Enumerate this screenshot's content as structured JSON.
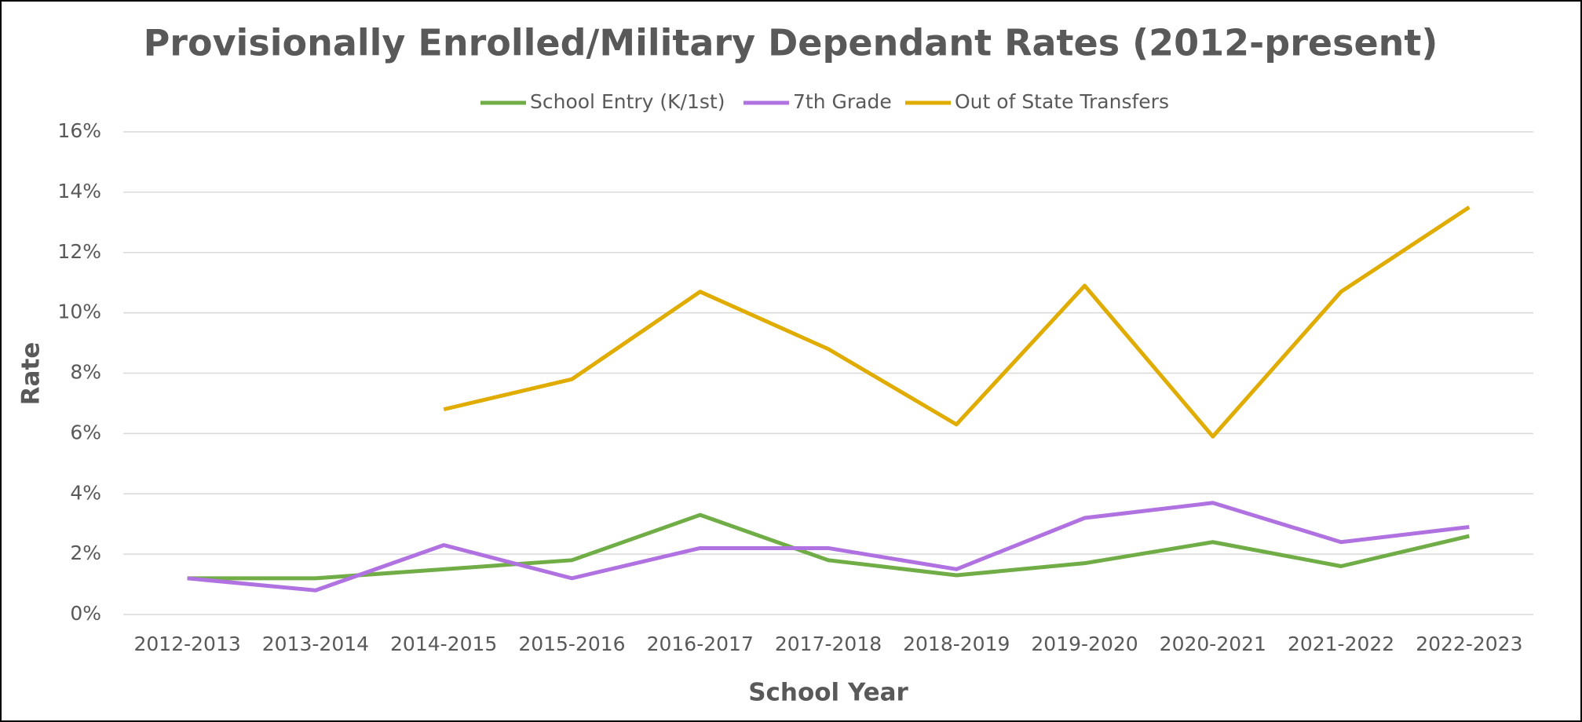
{
  "chart_data": {
    "type": "line",
    "title": "Provisionally Enrolled/Military Dependant Rates (2012-present)",
    "x_label": "School Year",
    "y_label": "Rate",
    "categories": [
      "2012-2013",
      "2013-2014",
      "2014-2015",
      "2015-2016",
      "2016-2017",
      "2017-2018",
      "2018-2019",
      "2019-2020",
      "2020-2021",
      "2021-2022",
      "2022-2023"
    ],
    "series": [
      {
        "name": "School Entry (K/1st)",
        "color": "#70ad47",
        "values": [
          1.2,
          1.2,
          1.5,
          1.8,
          3.3,
          1.8,
          1.3,
          1.7,
          2.4,
          1.6,
          2.6
        ]
      },
      {
        "name": "7th Grade",
        "color": "#b072e0",
        "values": [
          1.2,
          0.8,
          2.3,
          1.2,
          2.2,
          2.2,
          1.5,
          3.2,
          3.7,
          2.4,
          2.9
        ]
      },
      {
        "name": "Out of State Transfers",
        "color": "#e0ac00",
        "values": [
          null,
          null,
          6.8,
          7.8,
          10.7,
          8.8,
          6.3,
          10.9,
          5.9,
          10.7,
          13.5
        ]
      }
    ],
    "ylim": [
      0,
      16
    ],
    "yticks": [
      {
        "value": 0,
        "label": "0%"
      },
      {
        "value": 2,
        "label": "2%"
      },
      {
        "value": 4,
        "label": "4%"
      },
      {
        "value": 6,
        "label": "6%"
      },
      {
        "value": 8,
        "label": "8%"
      },
      {
        "value": 10,
        "label": "10%"
      },
      {
        "value": 12,
        "label": "12%"
      },
      {
        "value": 14,
        "label": "14%"
      },
      {
        "value": 16,
        "label": "16%"
      }
    ],
    "grid": true,
    "legend": "top"
  }
}
